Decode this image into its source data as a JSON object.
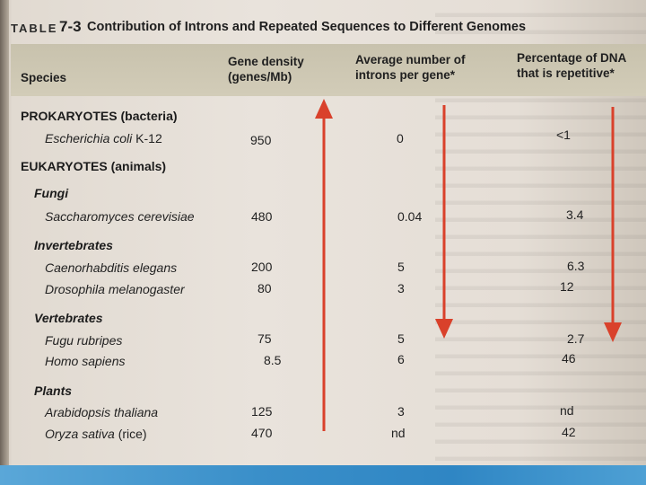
{
  "title": {
    "prefix": "TABLE",
    "number": "7-3",
    "text": "Contribution of Introns and Repeated Sequences to Different Genomes"
  },
  "headers": {
    "species": "Species",
    "density_line1": "Gene density",
    "density_line2": "(genes/Mb)",
    "introns_line1": "Average number of",
    "introns_line2": "introns per gene*",
    "repeat_line1": "Percentage of DNA",
    "repeat_line2": "that is repetitive*"
  },
  "sections": {
    "prokaryotes": "PROKARYOTES (bacteria)",
    "eukaryotes": "EUKARYOTES (animals)"
  },
  "groups": {
    "fungi": "Fungi",
    "invertebrates": "Invertebrates",
    "vertebrates": "Vertebrates",
    "plants": "Plants"
  },
  "rows": [
    {
      "species": "Escherichia coli",
      "suffix": " K-12",
      "density": "950",
      "introns": "0",
      "repetitive": "<1"
    },
    {
      "species": "Saccharomyces cerevisiae",
      "suffix": "",
      "density": "480",
      "introns": "0.04",
      "repetitive": "3.4"
    },
    {
      "species": "Caenorhabditis elegans",
      "suffix": "",
      "density": "200",
      "introns": "5",
      "repetitive": "6.3"
    },
    {
      "species": "Drosophila melanogaster",
      "suffix": "",
      "density": "80",
      "introns": "3",
      "repetitive": "12"
    },
    {
      "species": "Fugu rubripes",
      "suffix": "",
      "density": "75",
      "introns": "5",
      "repetitive": "2.7"
    },
    {
      "species": "Homo sapiens",
      "suffix": "",
      "density": "8.5",
      "introns": "6",
      "repetitive": "46"
    },
    {
      "species": "Arabidopsis thaliana",
      "suffix": "",
      "density": "125",
      "introns": "3",
      "repetitive": "nd"
    },
    {
      "species": "Oryza sativa",
      "suffix": " (rice)",
      "density": "470",
      "introns": "nd",
      "repetitive": "42"
    }
  ],
  "colors": {
    "arrow": "#d9412b",
    "header_band": "#cbc5b0",
    "footer_bar": "#3a8fc9"
  }
}
